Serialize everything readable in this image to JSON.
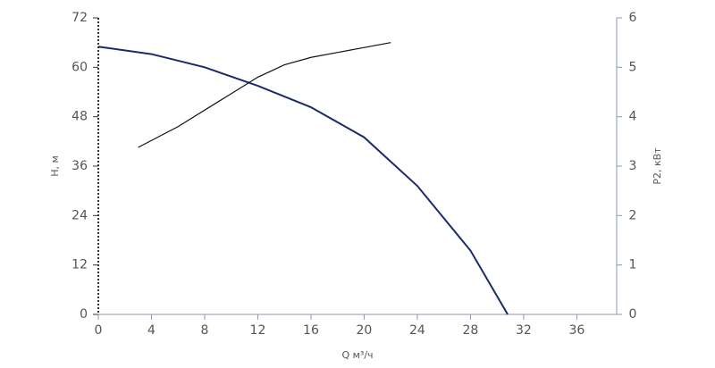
{
  "chart_data": {
    "type": "line",
    "x_label": "Q м³/ч",
    "y_label": "H, м",
    "y2_label": "P2, кВт",
    "xlim": [
      0,
      39
    ],
    "xticks": [
      0,
      4,
      8,
      12,
      16,
      20,
      24,
      28,
      32,
      36
    ],
    "ylim": [
      0,
      72
    ],
    "yticks": [
      0,
      12,
      24,
      36,
      48,
      60,
      72
    ],
    "y2lim": [
      0,
      6
    ],
    "y2ticks": [
      0,
      1,
      2,
      3,
      4,
      5,
      6
    ],
    "series": [
      {
        "color": "#1b2a6b",
        "x": [
          0,
          4,
          8,
          12,
          16,
          20,
          24,
          28,
          30.8
        ],
        "values": [
          65,
          63.2,
          60,
          55.5,
          50.3,
          43,
          31.2,
          15.5,
          0
        ]
      },
      {
        "color": "#111111",
        "axis": "y2",
        "x": [
          3,
          6,
          9,
          12,
          14,
          16,
          20,
          22
        ],
        "values": [
          3.38,
          3.8,
          4.3,
          4.8,
          5.05,
          5.2,
          5.4,
          5.5
        ]
      }
    ]
  }
}
